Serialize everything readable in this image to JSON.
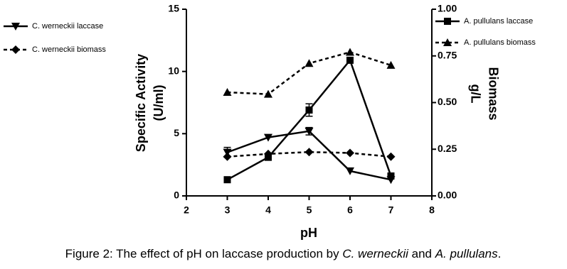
{
  "chart_data": {
    "type": "line",
    "xlabel": "pH",
    "ylabel": [
      "Specific Activity",
      "(U/ml)"
    ],
    "y2label": [
      "Biomass",
      "g/L"
    ],
    "caption": [
      {
        "text": "Figure 2: The effect of pH on laccase production by ",
        "italic": false
      },
      {
        "text": "C. werneckii",
        "italic": true
      },
      {
        "text": " and ",
        "italic": false
      },
      {
        "text": "A. pullulans",
        "italic": true
      },
      {
        "text": ".",
        "italic": false
      }
    ],
    "x": [
      3,
      4,
      5,
      6,
      7
    ],
    "xlim": [
      2,
      8
    ],
    "xticks": [
      2,
      3,
      4,
      5,
      6,
      7,
      8
    ],
    "ylim": [
      0,
      15
    ],
    "yticks": [
      0,
      5,
      10,
      15
    ],
    "y2lim": [
      0,
      1
    ],
    "y2ticks": [
      {
        "value": 0,
        "label": "0.00"
      },
      {
        "value": 0.25,
        "label": "0.25"
      },
      {
        "value": 0.5,
        "label": "0.50"
      },
      {
        "value": 0.75,
        "label": "0.75"
      },
      {
        "value": 1,
        "label": "1.00"
      }
    ],
    "series": [
      {
        "name": "C. werneckii laccase",
        "color": "#000000",
        "marker": "triangle-down",
        "dash": false,
        "axis": "y",
        "values": [
          3.5,
          4.7,
          5.2,
          2.0,
          1.3
        ],
        "errors": [
          0.4,
          null,
          0.3,
          null,
          null
        ]
      },
      {
        "name": "C. werneckii biomass",
        "color": "#000000",
        "marker": "diamond",
        "dash": true,
        "axis": "y2",
        "values": [
          0.21,
          0.225,
          0.235,
          0.23,
          0.21
        ],
        "errors": [
          null,
          null,
          null,
          null,
          null
        ]
      },
      {
        "name": "A. pullulans laccase",
        "color": "#000000",
        "marker": "square",
        "dash": false,
        "axis": "y",
        "values": [
          1.3,
          3.1,
          6.9,
          10.9,
          1.6
        ],
        "errors": [
          null,
          null,
          0.5,
          null,
          null
        ]
      },
      {
        "name": "A. pullulans biomass",
        "color": "#000000",
        "marker": "triangle-up",
        "dash": true,
        "axis": "y2",
        "values": [
          0.555,
          0.545,
          0.71,
          0.77,
          0.7
        ],
        "errors": [
          null,
          null,
          null,
          null,
          null
        ]
      }
    ]
  }
}
